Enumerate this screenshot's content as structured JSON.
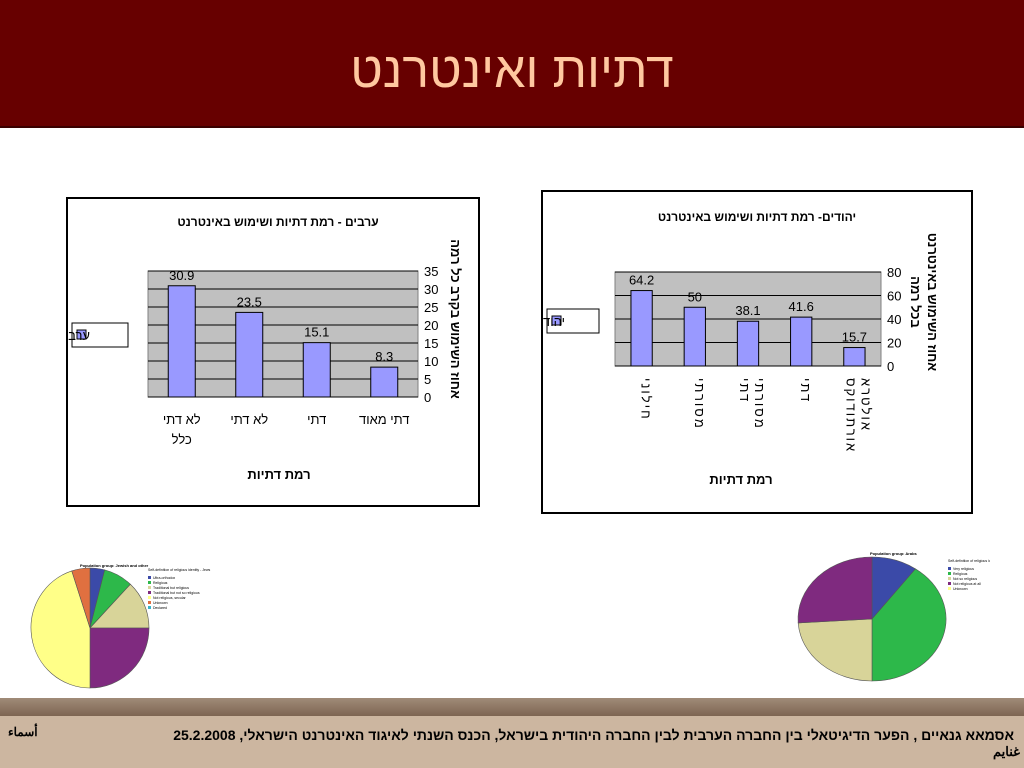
{
  "slide": {
    "title": "דתיות ואינטרנט",
    "footer_text": "אסמאא גנאיים , הפער הדיגיטאלי בין החברה הערבית לבין החברה היהודית בישראל, הכנס השנתי לאיגוד האינטרנט הישראלי, 25.2.2008",
    "footer_author_top": "أسماء",
    "footer_author_bottom": "غنايم"
  },
  "chart_data": [
    {
      "type": "bar",
      "title": "ערבים - רמת דתיות ושימוש באינטרנט",
      "xlabel": "רמת דתיות",
      "ylabel": "אחוז השימוש בקרב כל רמה",
      "categories": [
        [
          "לא דתי",
          "כלל"
        ],
        [
          "לא דתי"
        ],
        [
          "דתי"
        ],
        [
          "דתי מאוד"
        ]
      ],
      "series": [
        {
          "name": "ערבים",
          "values": [
            30.9,
            23.5,
            15.1,
            8.3
          ]
        }
      ],
      "ylim": [
        0,
        35
      ],
      "yticks": [
        "35",
        "30",
        "25",
        "20",
        "15",
        "10",
        "5",
        "0"
      ],
      "grid": true,
      "legend": "left",
      "colors": {
        "bar": "#9999ff",
        "plot_bg": "#c0c0c0"
      }
    },
    {
      "type": "bar",
      "title": "יהודים- רמת דתיות ושימוש באינטרנט",
      "xlabel": "רמת דתיות",
      "ylabel": [
        "אחוז השימוש באינטרנט",
        "בכל רמה"
      ],
      "categories": [
        [
          "חילוני"
        ],
        [
          "מסורתי"
        ],
        [
          "מסורתי",
          "דתי"
        ],
        [
          "דתי"
        ],
        [
          "אולטרא",
          "אורתודוקס"
        ]
      ],
      "series": [
        {
          "name": "יהודים",
          "values": [
            64.2,
            50,
            38.1,
            41.6,
            15.7
          ]
        }
      ],
      "ylim": [
        0,
        80
      ],
      "yticks": [
        "80",
        "60",
        "40",
        "20",
        "0"
      ],
      "grid": true,
      "legend": "left",
      "colors": {
        "bar": "#9999ff",
        "plot_bg": "#c0c0c0"
      }
    },
    {
      "type": "pie",
      "title": "Population group: Jewish and other",
      "legend_title": "Self-definition of religious identity - Jews",
      "labels": [
        "Ultra-orthodox",
        "Religious",
        "Traditional but religious",
        "Traditional but not so religious",
        "Not religious, secular",
        "Unknown",
        "Declared"
      ],
      "values": [
        4,
        8,
        13,
        25,
        45,
        5,
        0
      ],
      "colors": [
        "#3b4aa8",
        "#2db84a",
        "#d8d499",
        "#7f2a7f",
        "#ffff88",
        "#e07040",
        "#39b3c9"
      ]
    },
    {
      "type": "pie",
      "title": "Population group: Arabs",
      "legend_title": "Self-definition of religious identity - Non-Jews",
      "labels": [
        "Very religious",
        "Religious",
        "Not so religious",
        "Not religious at all",
        "Unknown"
      ],
      "values": [
        10,
        40,
        24,
        26,
        0
      ],
      "colors": [
        "#3b4aa8",
        "#2db84a",
        "#d8d499",
        "#7f2a7f",
        "#ffff88"
      ]
    }
  ]
}
